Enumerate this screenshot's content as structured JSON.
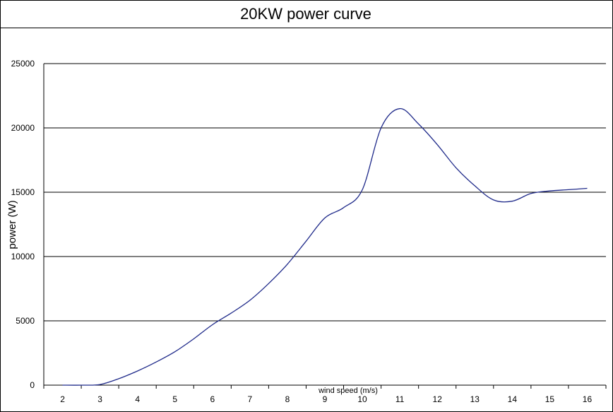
{
  "chart_data": {
    "type": "line",
    "title": "20KW power curve",
    "xlabel": "wind speed  (m/s)",
    "ylabel": "power  (W)",
    "x": [
      2,
      2.5,
      3,
      3.5,
      4,
      4.5,
      5,
      5.5,
      6,
      6.5,
      7,
      7.5,
      8,
      8.5,
      9,
      9.5,
      10,
      10.5,
      11,
      11.5,
      12,
      12.5,
      13,
      13.5,
      14,
      14.5,
      15,
      15.5,
      16
    ],
    "series": [
      {
        "values": [
          0,
          0,
          50,
          500,
          1100,
          1800,
          2600,
          3600,
          4700,
          5600,
          6600,
          7900,
          9400,
          11200,
          13000,
          13800,
          15200,
          20000,
          21500,
          20300,
          18700,
          16900,
          15500,
          14400,
          14300,
          14900,
          15100,
          15200,
          15300
        ],
        "color": "#1f2a8a"
      }
    ],
    "xticks": [
      "2",
      "3",
      "4",
      "5",
      "6",
      "7",
      "8",
      "9",
      "10",
      "11",
      "12",
      "13",
      "14",
      "15",
      "16"
    ],
    "yticks": [
      "0",
      "5000",
      "10000",
      "15000",
      "20000",
      "25000"
    ],
    "xlim": [
      1.5,
      16.5
    ],
    "ylim": [
      0,
      25000
    ],
    "grid": true
  }
}
